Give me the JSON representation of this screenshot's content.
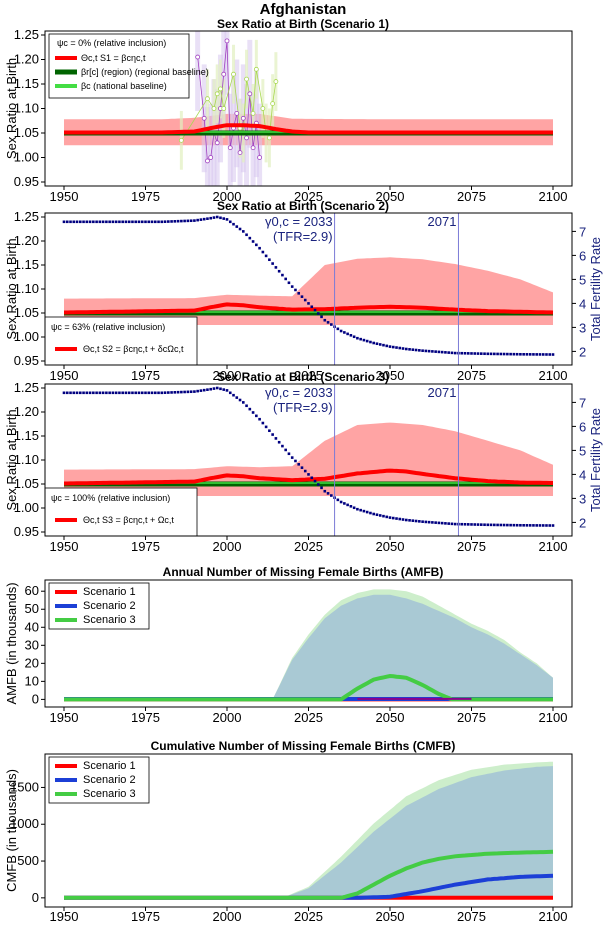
{
  "figure_title": "Afghanistan",
  "chart_data": [
    {
      "id": "p1",
      "type": "line",
      "title": "Sex Ratio at Birth (Scenario 1)",
      "ylabel": "Sex Ratio at Birth",
      "xlim": [
        1950,
        2100
      ],
      "ylim": [
        0.95,
        1.25
      ],
      "xticks": [
        "1950",
        "1975",
        "2000",
        "2025",
        "2050",
        "2075",
        "2100"
      ],
      "yticks": [
        "0.95",
        "1.00",
        "1.05",
        "1.10",
        "1.15",
        "1.20",
        "1.25"
      ],
      "legend": {
        "position": "top-left",
        "header": "ψc = 0% (relative inclusion)",
        "entries": [
          {
            "label": "Θc,t S1 = βcηc,t",
            "color": "#ff0000"
          },
          {
            "label": "βr[c] (region) (regional baseline)",
            "color": "#006400"
          },
          {
            "label": "βc (national baseline)",
            "color": "#44dd44"
          }
        ]
      },
      "band": {
        "color": "#ff9a9a",
        "x": [
          1950,
          1980,
          1990,
          2000,
          2010,
          2020,
          2050,
          2100
        ],
        "lower": [
          1.025,
          1.025,
          1.025,
          1.025,
          1.025,
          1.025,
          1.025,
          1.025
        ],
        "upper": [
          1.078,
          1.078,
          1.081,
          1.089,
          1.089,
          1.079,
          1.078,
          1.078
        ]
      },
      "series": [
        {
          "name": "Θ S1 median",
          "color": "#ff0000",
          "x": [
            1950,
            1980,
            1990,
            1995,
            2000,
            2005,
            2010,
            2015,
            2020,
            2025,
            2100
          ],
          "values": [
            1.051,
            1.051,
            1.053,
            1.06,
            1.066,
            1.066,
            1.064,
            1.058,
            1.053,
            1.051,
            1.051
          ]
        },
        {
          "name": "regional baseline",
          "color": "#006400",
          "x": [
            1950,
            2100
          ],
          "values": [
            1.05,
            1.05
          ]
        },
        {
          "name": "national baseline",
          "color": "#44dd44",
          "x": [
            1950,
            2100
          ],
          "values": [
            1.052,
            1.052
          ]
        }
      ],
      "observations": {
        "purple": {
          "color": "#a040c0",
          "x": [
            1991,
            1993,
            1994,
            1995,
            1996,
            1997,
            1998,
            1999,
            2000,
            2001,
            2002,
            2003,
            2004,
            2005,
            2006,
            2007,
            2008,
            2009,
            2010
          ],
          "values": [
            1.205,
            1.08,
            0.993,
            1.0,
            1.05,
            1.03,
            1.1,
            1.17,
            1.238,
            1.02,
            1.06,
            1.09,
            1.01,
            1.08,
            1.04,
            1.13,
            1.02,
            1.07,
            1.0
          ]
        },
        "green": {
          "color": "#a8d850",
          "x": [
            1986,
            1994,
            1996,
            1997,
            1998,
            1999,
            2002,
            2004,
            2005,
            2006,
            2008,
            2009,
            2011,
            2012,
            2013,
            2014,
            2015
          ],
          "values": [
            1.035,
            1.12,
            1.1,
            1.13,
            1.14,
            1.1,
            1.17,
            1.06,
            1.05,
            1.16,
            1.09,
            1.18,
            1.1,
            1.05,
            1.04,
            1.11,
            1.155
          ]
        }
      }
    },
    {
      "id": "p2",
      "type": "line",
      "title": "Sex Ratio at Birth (Scenario 2)",
      "ylabel": "Sex Ratio at Birth",
      "ylabel_right": "Total Fertility Rate",
      "xlim": [
        1950,
        2100
      ],
      "ylim": [
        0.95,
        1.25
      ],
      "ylim_right": [
        1.6,
        7.6
      ],
      "xticks": [
        "1950",
        "1975",
        "2000",
        "2025",
        "2050",
        "2075",
        "2100"
      ],
      "yticks": [
        "0.95",
        "1.00",
        "1.05",
        "1.10",
        "1.15",
        "1.20",
        "1.25"
      ],
      "yticks_right": [
        "2",
        "3",
        "4",
        "5",
        "6",
        "7"
      ],
      "vlines": [
        {
          "x": 2033,
          "label": "γ0,c = 2033",
          "sublabel": "(TFR=2.9)"
        },
        {
          "x": 2071,
          "label": "2071"
        }
      ],
      "legend": {
        "position": "bottom-left",
        "header": "ψc = 63% (relative inclusion)",
        "entries": [
          {
            "label": "Θc,t S2 = βcηc,t + δcΩc,t",
            "color": "#ff0000"
          }
        ]
      },
      "band": {
        "color": "#ff9a9a",
        "x": [
          1950,
          1990,
          2000,
          2010,
          2020,
          2030,
          2040,
          2050,
          2060,
          2070,
          2080,
          2090,
          2100
        ],
        "lower": [
          1.025,
          1.025,
          1.025,
          1.025,
          1.025,
          1.025,
          1.025,
          1.025,
          1.025,
          1.025,
          1.025,
          1.025,
          1.025
        ],
        "upper": [
          1.08,
          1.081,
          1.088,
          1.086,
          1.085,
          1.15,
          1.163,
          1.166,
          1.162,
          1.152,
          1.138,
          1.12,
          1.093
        ]
      },
      "series": [
        {
          "name": "Θ S2 median",
          "color": "#ff0000",
          "x": [
            1950,
            1990,
            1995,
            2000,
            2005,
            2010,
            2020,
            2030,
            2040,
            2050,
            2060,
            2070,
            2080,
            2100
          ],
          "values": [
            1.051,
            1.055,
            1.062,
            1.068,
            1.066,
            1.062,
            1.057,
            1.058,
            1.061,
            1.063,
            1.061,
            1.057,
            1.054,
            1.051
          ]
        },
        {
          "name": "regional baseline",
          "color": "#006400",
          "x": [
            1950,
            2100
          ],
          "values": [
            1.05,
            1.05
          ]
        },
        {
          "name": "national baseline",
          "color": "#44dd44",
          "x": [
            1950,
            2100
          ],
          "values": [
            1.052,
            1.052
          ]
        }
      ],
      "tfr": {
        "color": "#000080",
        "x": [
          1950,
          1980,
          1990,
          1995,
          1997,
          2000,
          2005,
          2010,
          2015,
          2020,
          2025,
          2030,
          2035,
          2040,
          2045,
          2050,
          2055,
          2060,
          2070,
          2080,
          2090,
          2100
        ],
        "values": [
          7.4,
          7.4,
          7.45,
          7.55,
          7.6,
          7.5,
          7.0,
          6.3,
          5.5,
          4.7,
          4.0,
          3.3,
          2.85,
          2.55,
          2.35,
          2.2,
          2.1,
          2.03,
          1.93,
          1.9,
          1.88,
          1.87
        ]
      }
    },
    {
      "id": "p3",
      "type": "line",
      "title": "Sex Ratio at Birth (Scenario 3)",
      "ylabel": "Sex Ratio at Birth",
      "ylabel_right": "Total Fertility Rate",
      "xlim": [
        1950,
        2100
      ],
      "ylim": [
        0.95,
        1.25
      ],
      "ylim_right": [
        1.6,
        7.6
      ],
      "xticks": [
        "1950",
        "1975",
        "2000",
        "2025",
        "2050",
        "2075",
        "2100"
      ],
      "yticks": [
        "0.95",
        "1.00",
        "1.05",
        "1.10",
        "1.15",
        "1.20",
        "1.25"
      ],
      "yticks_right": [
        "2",
        "3",
        "4",
        "5",
        "6",
        "7"
      ],
      "vlines": [
        {
          "x": 2033,
          "label": "γ0,c = 2033",
          "sublabel": "(TFR=2.9)"
        },
        {
          "x": 2071,
          "label": "2071"
        }
      ],
      "legend": {
        "position": "bottom-left",
        "header": "ψc = 100% (relative inclusion)",
        "entries": [
          {
            "label": "Θc,t S3 = βcηc,t + Ωc,t",
            "color": "#ff0000"
          }
        ]
      },
      "band": {
        "color": "#ff9a9a",
        "x": [
          1950,
          1990,
          2000,
          2010,
          2020,
          2030,
          2040,
          2050,
          2060,
          2070,
          2080,
          2090,
          2100
        ],
        "lower": [
          1.025,
          1.025,
          1.025,
          1.025,
          1.025,
          1.025,
          1.025,
          1.025,
          1.025,
          1.025,
          1.025,
          1.025,
          1.025
        ],
        "upper": [
          1.08,
          1.081,
          1.087,
          1.085,
          1.087,
          1.14,
          1.173,
          1.178,
          1.173,
          1.16,
          1.14,
          1.12,
          1.09
        ]
      },
      "series": [
        {
          "name": "Θ S3 median",
          "color": "#ff0000",
          "x": [
            1950,
            1990,
            1995,
            2000,
            2005,
            2010,
            2020,
            2030,
            2040,
            2050,
            2055,
            2060,
            2070,
            2080,
            2090,
            2100
          ],
          "values": [
            1.051,
            1.055,
            1.062,
            1.068,
            1.066,
            1.062,
            1.058,
            1.061,
            1.072,
            1.078,
            1.076,
            1.071,
            1.062,
            1.056,
            1.053,
            1.052
          ]
        },
        {
          "name": "regional baseline",
          "color": "#006400",
          "x": [
            1950,
            2100
          ],
          "values": [
            1.05,
            1.05
          ]
        },
        {
          "name": "national baseline",
          "color": "#44dd44",
          "x": [
            1950,
            2100
          ],
          "values": [
            1.052,
            1.052
          ]
        }
      ],
      "tfr": {
        "color": "#000080",
        "x": [
          1950,
          1980,
          1990,
          1995,
          1997,
          2000,
          2005,
          2010,
          2015,
          2020,
          2025,
          2030,
          2035,
          2040,
          2045,
          2050,
          2055,
          2060,
          2070,
          2080,
          2090,
          2100
        ],
        "values": [
          7.4,
          7.4,
          7.45,
          7.55,
          7.6,
          7.5,
          7.0,
          6.3,
          5.5,
          4.7,
          4.0,
          3.3,
          2.85,
          2.55,
          2.35,
          2.2,
          2.1,
          2.03,
          1.93,
          1.9,
          1.88,
          1.87
        ]
      }
    },
    {
      "id": "p4",
      "type": "area",
      "title": "Annual Number of Missing Female Births (AMFB)",
      "ylabel": "AMFB (in thousands)",
      "xlim": [
        1950,
        2100
      ],
      "ylim": [
        -2,
        64
      ],
      "xticks": [
        "1950",
        "1975",
        "2000",
        "2025",
        "2050",
        "2075",
        "2100"
      ],
      "yticks": [
        "0",
        "10",
        "20",
        "30",
        "40",
        "50",
        "60"
      ],
      "legend": {
        "position": "top-left",
        "entries": [
          {
            "label": "Scenario 1",
            "color": "#ff0000"
          },
          {
            "label": "Scenario 2",
            "color": "#1c3fd6"
          },
          {
            "label": "Scenario 3",
            "color": "#44cc44"
          }
        ]
      },
      "bands": [
        {
          "color": "#cdeecb",
          "x": [
            1950,
            2014,
            2020,
            2025,
            2030,
            2035,
            2040,
            2045,
            2050,
            2055,
            2060,
            2065,
            2070,
            2075,
            2080,
            2085,
            2090,
            2095,
            2100
          ],
          "lower": [
            0,
            0,
            0,
            0,
            0,
            0,
            0,
            0,
            0,
            0,
            0,
            0,
            0,
            0,
            0,
            0,
            0,
            0,
            0
          ],
          "upper": [
            0,
            0,
            23,
            36,
            47,
            55,
            59,
            61,
            61,
            60,
            57,
            52,
            47,
            42,
            38,
            33,
            26,
            20,
            12
          ]
        },
        {
          "color": "#a9c9d4",
          "x": [
            1950,
            2014,
            2020,
            2025,
            2030,
            2035,
            2040,
            2045,
            2050,
            2055,
            2060,
            2065,
            2070,
            2075,
            2080,
            2085,
            2090,
            2095,
            2100
          ],
          "lower": [
            0,
            0,
            0,
            0,
            0,
            0,
            0,
            0,
            0,
            0,
            0,
            0,
            0,
            0,
            0,
            0,
            0,
            0,
            0
          ],
          "upper": [
            0,
            0,
            22,
            34,
            45,
            52,
            56,
            58,
            58,
            56,
            53,
            49,
            45,
            40,
            36,
            31,
            25,
            19,
            12
          ]
        }
      ],
      "series": [
        {
          "name": "Scenario 1",
          "color": "#ff0000",
          "x": [
            1950,
            2100
          ],
          "values": [
            0,
            0
          ]
        },
        {
          "name": "Scenario 2",
          "color": "#1c3fd6",
          "x": [
            1950,
            2100
          ],
          "values": [
            0.2,
            0.2
          ]
        },
        {
          "name": "Scenario 3",
          "color": "#44cc44",
          "x": [
            1950,
            2035,
            2040,
            2045,
            2050,
            2055,
            2060,
            2065,
            2069,
            2100
          ],
          "values": [
            0,
            0,
            6,
            11,
            13,
            12,
            8,
            3,
            0,
            0
          ]
        },
        {
          "name": "Scenario 2 (purple)",
          "color": "#8b008b",
          "x": [
            2040,
            2075
          ],
          "values": [
            0.3,
            0.3
          ]
        }
      ]
    },
    {
      "id": "p5",
      "type": "area",
      "title": "Cumulative Number of Missing Female Births (CMFB)",
      "ylabel": "CMFB (in thousands)",
      "xlim": [
        1950,
        2100
      ],
      "ylim": [
        -70,
        1900
      ],
      "xticks": [
        "1950",
        "1975",
        "2000",
        "2025",
        "2050",
        "2075",
        "2100"
      ],
      "yticks": [
        "0",
        "500",
        "1000",
        "1500"
      ],
      "legend": {
        "position": "top-left",
        "entries": [
          {
            "label": "Scenario 1",
            "color": "#ff0000"
          },
          {
            "label": "Scenario 2",
            "color": "#1c3fd6"
          },
          {
            "label": "Scenario 3",
            "color": "#44cc44"
          }
        ]
      },
      "bands": [
        {
          "color": "#cdeecb",
          "x": [
            1950,
            2017,
            2025,
            2035,
            2045,
            2055,
            2065,
            2075,
            2085,
            2095,
            2100
          ],
          "lower": [
            0,
            0,
            0,
            0,
            0,
            0,
            0,
            0,
            0,
            0,
            0
          ],
          "upper": [
            0,
            0,
            150,
            560,
            1010,
            1380,
            1600,
            1740,
            1810,
            1840,
            1850
          ]
        },
        {
          "color": "#a9c9d4",
          "x": [
            1950,
            2017,
            2025,
            2035,
            2045,
            2055,
            2065,
            2075,
            2085,
            2095,
            2100
          ],
          "lower": [
            0,
            0,
            0,
            0,
            0,
            0,
            0,
            0,
            0,
            0,
            0
          ],
          "upper": [
            0,
            0,
            130,
            480,
            900,
            1250,
            1480,
            1640,
            1730,
            1780,
            1790
          ]
        }
      ],
      "series": [
        {
          "name": "Scenario 1",
          "color": "#ff0000",
          "x": [
            1950,
            2100
          ],
          "values": [
            0,
            0
          ]
        },
        {
          "name": "Scenario 2",
          "color": "#1c3fd6",
          "x": [
            1950,
            2040,
            2050,
            2060,
            2070,
            2080,
            2090,
            2100
          ],
          "values": [
            0,
            0,
            15,
            90,
            180,
            250,
            285,
            300
          ]
        },
        {
          "name": "Scenario 3",
          "color": "#44cc44",
          "x": [
            1950,
            2035,
            2040,
            2045,
            2050,
            2055,
            2060,
            2065,
            2070,
            2080,
            2090,
            2100
          ],
          "values": [
            0,
            0,
            60,
            180,
            300,
            400,
            480,
            530,
            565,
            600,
            615,
            625
          ]
        }
      ]
    }
  ]
}
